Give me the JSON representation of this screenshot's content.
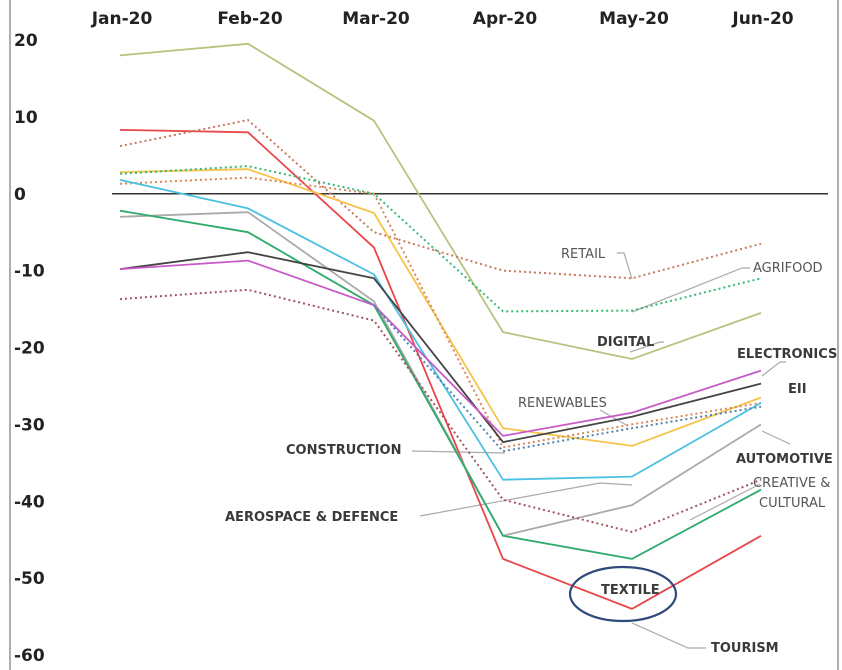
{
  "chart_data": {
    "type": "line",
    "categories": [
      "Jan-20",
      "Feb-20",
      "Mar-20",
      "Apr-20",
      "May-20",
      "Jun-20"
    ],
    "y_ticks": [
      20,
      10,
      0,
      -10,
      -20,
      -30,
      -40,
      -50,
      -60
    ],
    "ylim": [
      -60,
      20
    ],
    "grid": false,
    "series": [
      {
        "name": "DIGITAL",
        "color": "#b5c47f",
        "dash": false,
        "values": [
          18,
          19.5,
          9.5,
          -18,
          -21.5,
          -15.5
        ]
      },
      {
        "name": "TOURISM",
        "color": "#e8474a",
        "dash": false,
        "values": [
          8.3,
          8,
          -7,
          -47.5,
          -54,
          -44.5
        ]
      },
      {
        "name": "RETAIL",
        "color": "#c87a5e",
        "dash": true,
        "values": [
          6.2,
          9.6,
          -5,
          -10,
          -11,
          -6.5
        ]
      },
      {
        "name": "CONSTRUCTION",
        "color": "#f5c34a",
        "dash": false,
        "values": [
          2.8,
          3.2,
          -2.5,
          -30.5,
          -32.8,
          -26.5
        ]
      },
      {
        "name": "AGRIFOOD",
        "color": "#3ab878",
        "dash": true,
        "values": [
          2.6,
          3.6,
          0,
          -15.3,
          -15.2,
          -11
        ]
      },
      {
        "name": "RENEWABLES",
        "color": "#d9875a",
        "dash": true,
        "values": [
          1.3,
          2.1,
          0,
          -33,
          -30,
          -27.2
        ]
      },
      {
        "name": "AEROSPACE & DEFENCE",
        "color": "#4cc0e0",
        "dash": false,
        "values": [
          1.8,
          -1.9,
          -10.5,
          -37.2,
          -36.8,
          -27.2
        ]
      },
      {
        "name": "AUTOMOTIVE",
        "color": "#aaaaaa",
        "dash": false,
        "values": [
          -3,
          -2.4,
          -14,
          -44.5,
          -40.5,
          -30
        ]
      },
      {
        "name": "TEXTILE",
        "color": "#2eaa6a",
        "dash": false,
        "values": [
          -2.2,
          -5,
          -14.5,
          -44.5,
          -47.5,
          -38.5
        ]
      },
      {
        "name": "EII",
        "color": "#444444",
        "dash": false,
        "values": [
          -9.8,
          -7.6,
          -11,
          -32.3,
          -29,
          -24.7
        ]
      },
      {
        "name": "ELECTRONICS",
        "color": "#c85ac8",
        "dash": false,
        "values": [
          -9.8,
          -8.7,
          -14.5,
          -31.5,
          -28.5,
          -23
        ]
      },
      {
        "name": "CREATIVE & CULTURAL",
        "color": "#a05560",
        "dash": true,
        "values": [
          -13.7,
          -12.5,
          -16.5,
          -39.8,
          -44,
          -37.2
        ]
      },
      {
        "name": "",
        "color": "#5080b0",
        "dash": true,
        "values": [
          null,
          null,
          -14.5,
          -33.5,
          -30.5,
          -27.7
        ]
      }
    ],
    "annotations": {
      "retail": "RETAIL",
      "agrifood": "AGRIFOOD",
      "digital": "DIGITAL",
      "electronics": "ELECTRONICS",
      "eii": "EII",
      "renewables": "RENEWABLES",
      "construction": "CONSTRUCTION",
      "automotive": "AUTOMOTIVE",
      "creative_line1": "CREATIVE &",
      "creative_line2": "CULTURAL",
      "aerospace": "AEROSPACE & DEFENCE",
      "textile": "TEXTILE",
      "tourism": "TOURISM"
    },
    "colors": {
      "zero_line": "#333333",
      "leader": "#aaaaaa",
      "highlight_ring": "#2d4a7a",
      "frame": "#777777"
    }
  }
}
